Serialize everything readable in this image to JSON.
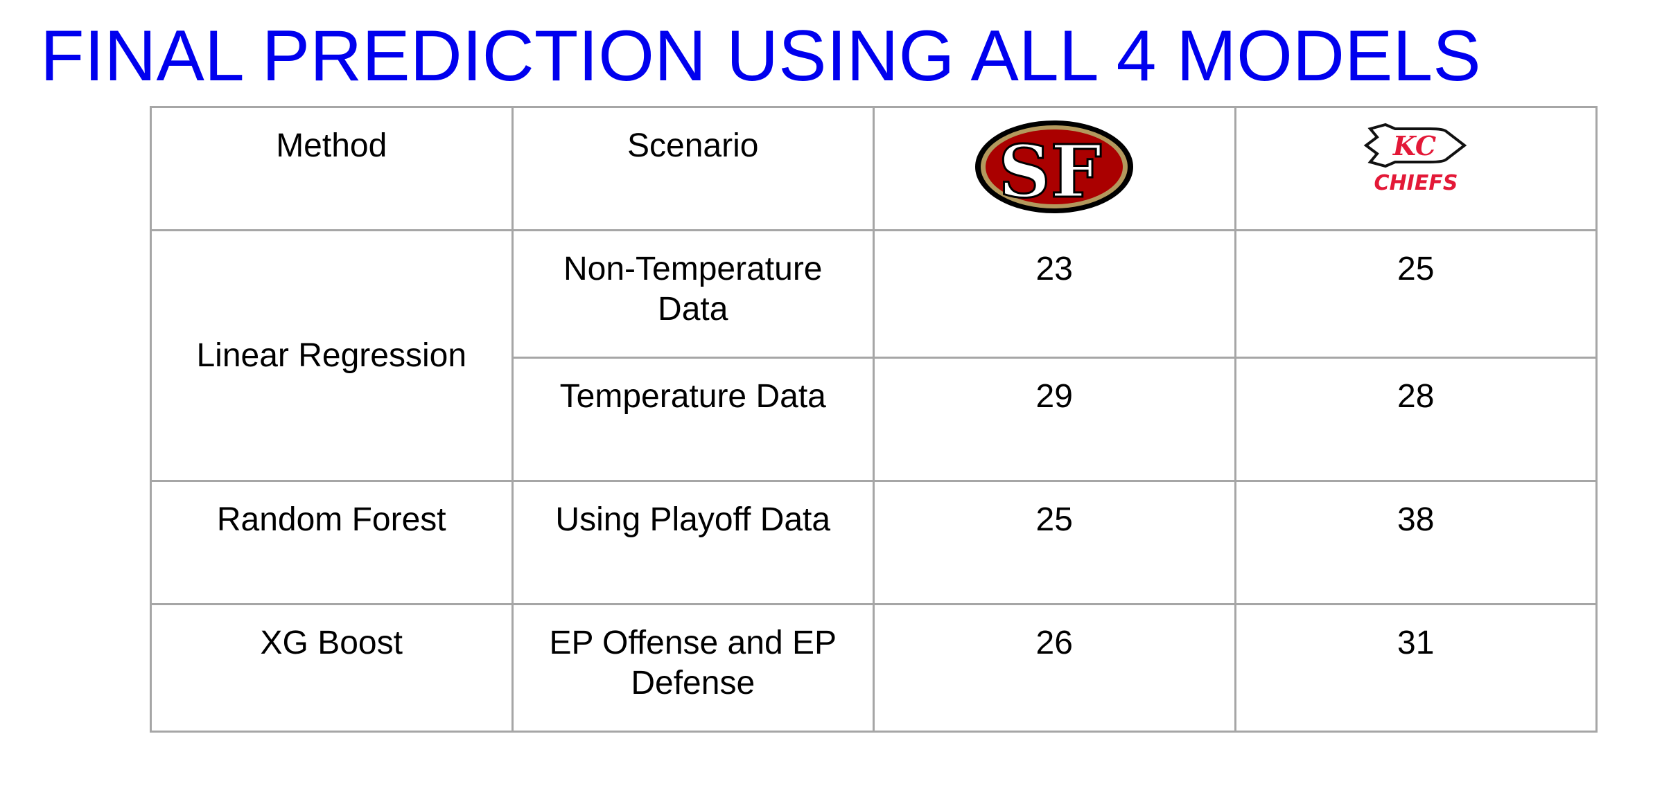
{
  "title": "FINAL PREDICTION USING ALL 4 MODELS",
  "table": {
    "headers": {
      "method": "Method",
      "scenario": "Scenario",
      "team1_logo": "49ers-logo",
      "team2_logo": "chiefs-logo",
      "team1_logo_text": "SF",
      "team2_logo_text": "CHIEFS",
      "team2_logo_monogram": "KC"
    },
    "rows": [
      {
        "method": "Linear Regression",
        "scenario": "Non-Temperature Data",
        "team1": "23",
        "team2": "25"
      },
      {
        "method": "",
        "scenario": "Temperature Data",
        "team1": "29",
        "team2": "28"
      },
      {
        "method": "Random Forest",
        "scenario": "Using Playoff Data",
        "team1": "25",
        "team2": "38"
      },
      {
        "method": "XG Boost",
        "scenario": "EP Offense and EP Defense",
        "team1": "26",
        "team2": "31"
      }
    ]
  },
  "colors": {
    "title": "#0000ee",
    "border": "#a6a6a6",
    "niners_red": "#aa0000",
    "niners_gold": "#b3995d",
    "chiefs_red": "#e31837"
  }
}
